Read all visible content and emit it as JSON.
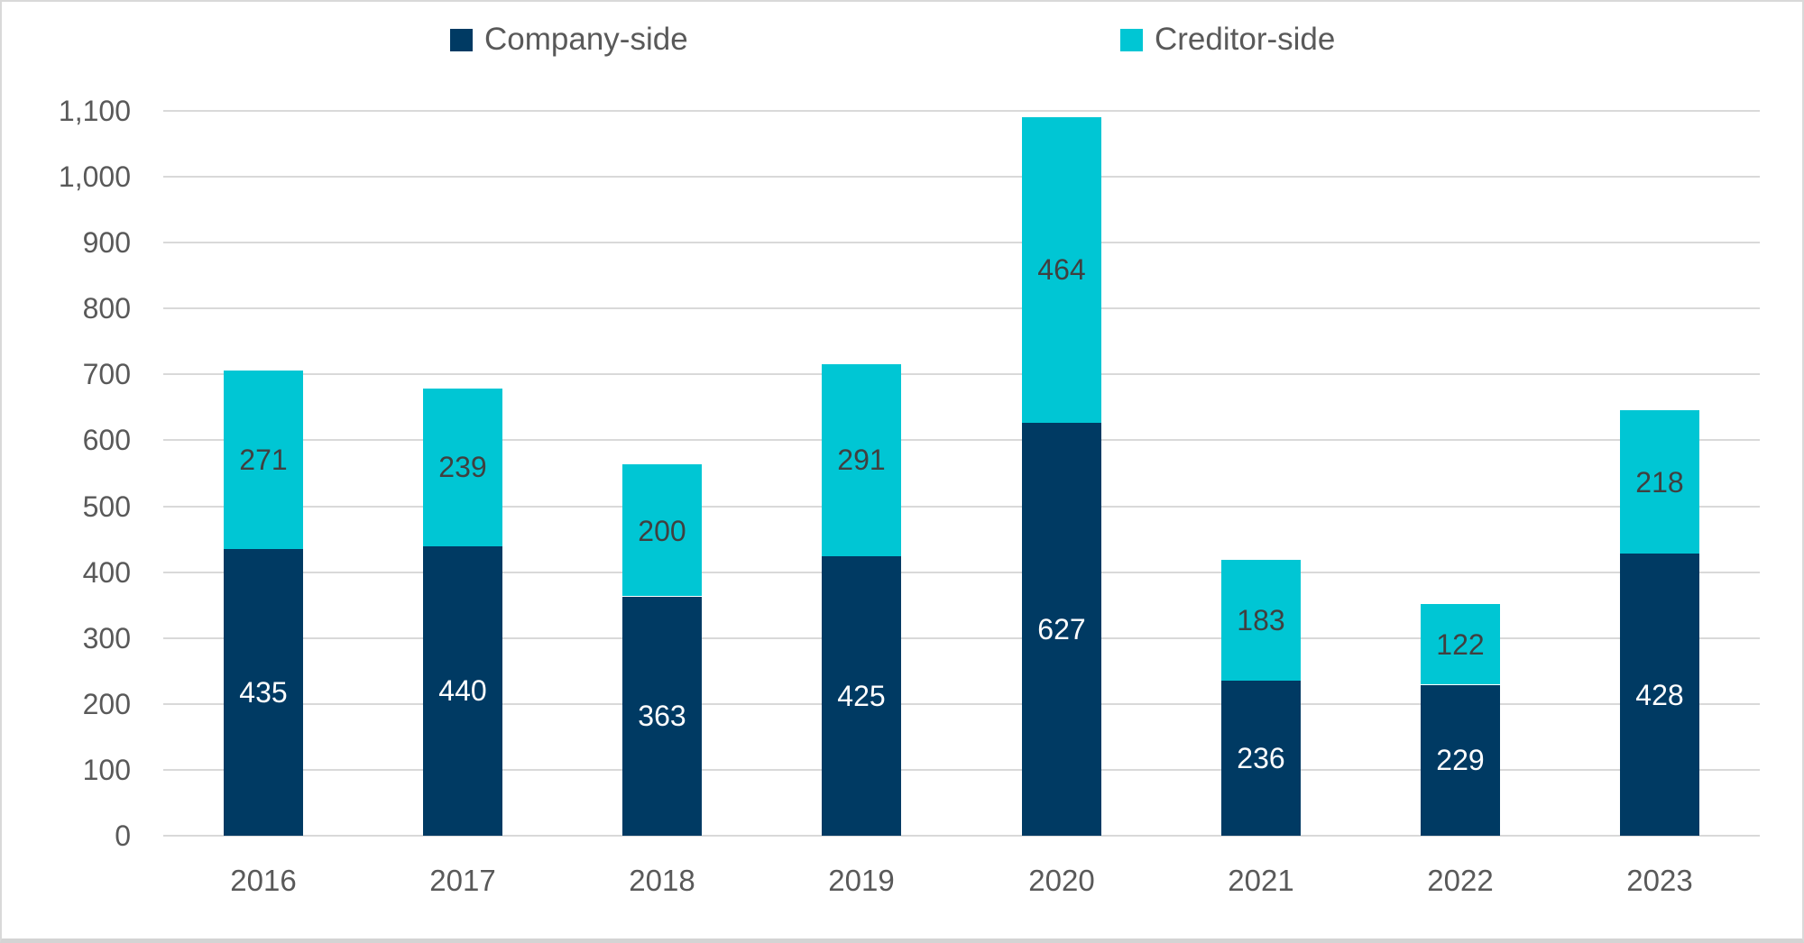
{
  "chart_data": {
    "type": "bar",
    "stacked": true,
    "title": "",
    "categories": [
      "2016",
      "2017",
      "2018",
      "2019",
      "2020",
      "2021",
      "2022",
      "2023"
    ],
    "series": [
      {
        "name": "Company-side",
        "color": "#003A63",
        "label_color": "#FFFFFF",
        "values": [
          435,
          440,
          363,
          425,
          627,
          236,
          229,
          428
        ]
      },
      {
        "name": "Creditor-side",
        "color": "#00C6D4",
        "label_color": "#404040",
        "values": [
          271,
          239,
          200,
          291,
          464,
          183,
          122,
          218
        ]
      }
    ],
    "xlabel": "",
    "ylabel": "",
    "ylim": [
      0,
      1100
    ],
    "ytick_step": 100,
    "ytick_labels": [
      "0",
      "100",
      "200",
      "300",
      "400",
      "500",
      "600",
      "700",
      "800",
      "900",
      "1,000",
      "1,100"
    ],
    "grid": "horizontal",
    "gridline_color": "#D9D9D9",
    "axis_text_color": "#595959",
    "legend_position": "top",
    "data_labels": "centered-in-segment"
  }
}
